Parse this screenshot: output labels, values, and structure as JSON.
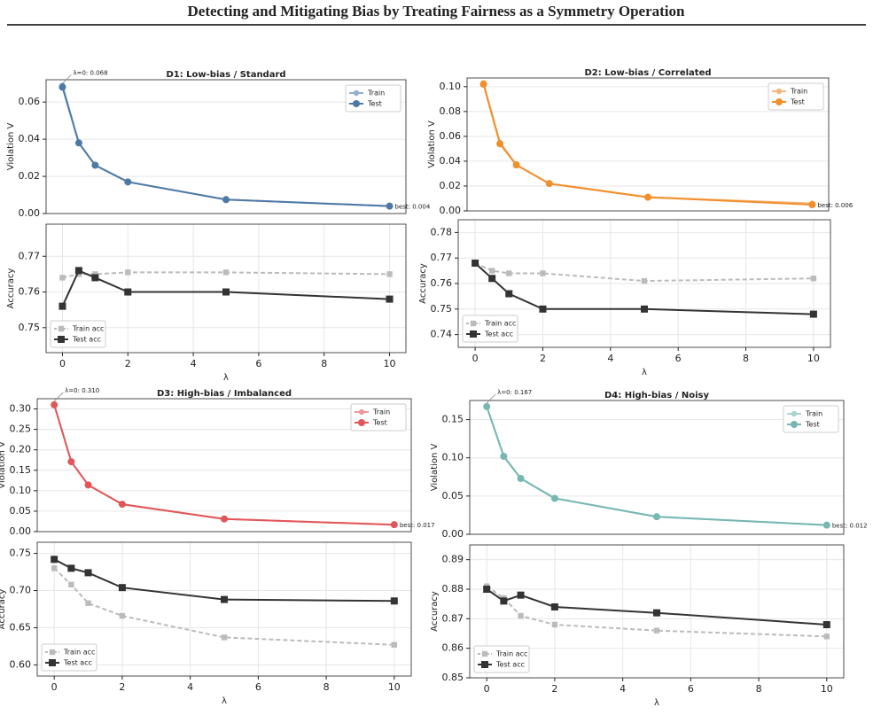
{
  "header": {
    "title": "Detecting and Mitigating Bias by Treating Fairness as a Symmetry Operation"
  },
  "chart_data": [
    {
      "type": "line",
      "title": "D1: Low-bias / Standard",
      "ylabel": "Violation V",
      "x": [
        0,
        0.5,
        1,
        2,
        5,
        10
      ],
      "xlim": [
        -0.5,
        10.5
      ],
      "ylim": [
        0,
        0.072
      ],
      "yticks": [
        {
          "value": 0,
          "label": "0.00"
        },
        0.02,
        0.04,
        0.06
      ],
      "grid": true,
      "legend": "upper right",
      "annotations": [
        "λ=0: 0.068",
        "best: 0.004"
      ],
      "series": [
        {
          "name": "Train",
          "color": "#93b1cf",
          "marker": "circle",
          "linestyle": "solid",
          "values": [
            0.069,
            0.038,
            0.026,
            0.017,
            0.0075,
            0.004
          ]
        },
        {
          "name": "Test",
          "color": "#4e79a7",
          "marker": "circle",
          "linestyle": "solid",
          "values": [
            0.068,
            0.038,
            0.026,
            0.017,
            0.0075,
            0.004
          ]
        }
      ]
    },
    {
      "type": "line",
      "xlabel": "λ",
      "ylabel": "Accuracy",
      "x": [
        0,
        0.5,
        1,
        2,
        5,
        10
      ],
      "xlim": [
        -0.5,
        10.5
      ],
      "xticks": [
        0,
        2,
        4,
        6,
        8,
        10
      ],
      "ylim": [
        0.743,
        0.779
      ],
      "yticks": [
        0.75,
        0.76,
        0.77
      ],
      "grid": true,
      "legend": "lower left",
      "series": [
        {
          "name": "Train acc",
          "color": "#bbbbbb",
          "marker": "square",
          "linestyle": "dashed",
          "values": [
            0.764,
            0.765,
            0.765,
            0.7655,
            0.7655,
            0.765
          ]
        },
        {
          "name": "Test acc",
          "color": "#333333",
          "marker": "square",
          "linestyle": "solid",
          "values": [
            0.756,
            0.766,
            0.764,
            0.76,
            0.76,
            0.758
          ]
        }
      ]
    },
    {
      "type": "line",
      "title": "D2: Low-bias / Correlated",
      "ylabel": "Violation V",
      "x": [
        0,
        0.5,
        1,
        2,
        5,
        10
      ],
      "xlim": [
        -0.5,
        10.5
      ],
      "ylim": [
        0,
        0.107
      ],
      "yticks": [
        {
          "value": 0,
          "label": "0.00"
        },
        0.02,
        0.04,
        0.06,
        0.08,
        {
          "value": 0.1,
          "label": "0.10"
        }
      ],
      "grid": true,
      "legend": "upper right",
      "annotations": [
        "best: 0.006"
      ],
      "series": [
        {
          "name": "Train",
          "color": "#f6b77a",
          "marker": "circle",
          "linestyle": "solid",
          "values": [
            0.103,
            0.055,
            0.037,
            0.022,
            0.011,
            0.006
          ]
        },
        {
          "name": "Test",
          "color": "#f28e2b",
          "marker": "circle",
          "linestyle": "solid",
          "values": [
            0.102,
            0.054,
            0.037,
            0.022,
            0.011,
            0.005
          ]
        }
      ]
    },
    {
      "type": "line",
      "xlabel": "λ",
      "ylabel": "Accuracy",
      "x": [
        0,
        0.5,
        1,
        2,
        5,
        10
      ],
      "xlim": [
        -0.5,
        10.5
      ],
      "xticks": [
        0,
        2,
        4,
        6,
        8,
        10
      ],
      "ylim": [
        0.735,
        0.785
      ],
      "yticks": [
        0.74,
        0.75,
        0.76,
        0.77,
        0.78
      ],
      "grid": true,
      "legend": "lower left",
      "series": [
        {
          "name": "Train acc",
          "color": "#bbbbbb",
          "marker": "square",
          "linestyle": "dashed",
          "values": [
            0.768,
            0.765,
            0.764,
            0.764,
            0.761,
            0.762
          ]
        },
        {
          "name": "Test acc",
          "color": "#333333",
          "marker": "square",
          "linestyle": "solid",
          "values": [
            0.768,
            0.762,
            0.756,
            0.75,
            0.75,
            0.748
          ]
        }
      ]
    },
    {
      "type": "line",
      "title": "D3: High-bias / Imbalanced",
      "ylabel": "Violation V",
      "x": [
        0,
        0.5,
        1,
        2,
        5,
        10
      ],
      "xlim": [
        -0.5,
        10.5
      ],
      "ylim": [
        0,
        0.325
      ],
      "yticks": [
        {
          "value": 0,
          "label": "0.00"
        },
        0.05,
        {
          "value": 0.1,
          "label": "0.10"
        },
        0.15,
        {
          "value": 0.2,
          "label": "0.20"
        },
        0.25,
        {
          "value": 0.3,
          "label": "0.30"
        }
      ],
      "grid": true,
      "legend": "upper right",
      "annotations": [
        "λ=0: 0.310",
        "best: 0.017"
      ],
      "series": [
        {
          "name": "Train",
          "color": "#ec9a9b",
          "marker": "circle",
          "linestyle": "solid",
          "values": [
            0.31,
            0.171,
            0.114,
            0.067,
            0.031,
            0.017
          ]
        },
        {
          "name": "Test",
          "color": "#e15759",
          "marker": "circle",
          "linestyle": "solid",
          "values": [
            0.31,
            0.171,
            0.114,
            0.067,
            0.031,
            0.017
          ]
        }
      ]
    },
    {
      "type": "line",
      "xlabel": "λ",
      "ylabel": "Accuracy",
      "x": [
        0,
        0.5,
        1,
        2,
        5,
        10
      ],
      "xlim": [
        -0.5,
        10.5
      ],
      "xticks": [
        0,
        2,
        4,
        6,
        8,
        10
      ],
      "ylim": [
        0.585,
        0.765
      ],
      "yticks": [
        {
          "value": 0.6,
          "label": "0.60"
        },
        0.65,
        {
          "value": 0.7,
          "label": "0.70"
        },
        0.75
      ],
      "grid": true,
      "legend": "lower left",
      "series": [
        {
          "name": "Train acc",
          "color": "#bbbbbb",
          "marker": "square",
          "linestyle": "dashed",
          "values": [
            0.73,
            0.708,
            0.683,
            0.666,
            0.637,
            0.627
          ]
        },
        {
          "name": "Test acc",
          "color": "#333333",
          "marker": "square",
          "linestyle": "solid",
          "values": [
            0.742,
            0.73,
            0.724,
            0.704,
            0.688,
            0.686
          ]
        }
      ]
    },
    {
      "type": "line",
      "title": "D4: High-bias / Noisy",
      "ylabel": "Violation V",
      "x": [
        0,
        0.5,
        1,
        2,
        5,
        10
      ],
      "xlim": [
        -0.5,
        10.5
      ],
      "ylim": [
        0,
        0.175
      ],
      "yticks": [
        {
          "value": 0,
          "label": "0.00"
        },
        0.05,
        {
          "value": 0.1,
          "label": "0.10"
        },
        0.15
      ],
      "grid": true,
      "legend": "upper right",
      "annotations": [
        "λ=0: 0.167",
        "best: 0.012"
      ],
      "series": [
        {
          "name": "Train",
          "color": "#a8d2cf",
          "marker": "circle",
          "linestyle": "solid",
          "values": [
            0.167,
            0.102,
            0.073,
            0.047,
            0.023,
            0.012
          ]
        },
        {
          "name": "Test",
          "color": "#76b7b2",
          "marker": "circle",
          "linestyle": "solid",
          "values": [
            0.167,
            0.102,
            0.073,
            0.047,
            0.023,
            0.012
          ]
        }
      ]
    },
    {
      "type": "line",
      "xlabel": "λ",
      "ylabel": "Accuracy",
      "x": [
        0,
        0.5,
        1,
        2,
        5,
        10
      ],
      "xlim": [
        -0.5,
        10.5
      ],
      "xticks": [
        0,
        2,
        4,
        6,
        8,
        10
      ],
      "ylim": [
        0.85,
        0.895
      ],
      "yticks": [
        0.85,
        0.86,
        0.87,
        0.88,
        0.89
      ],
      "grid": true,
      "legend": "lower left",
      "series": [
        {
          "name": "Train acc",
          "color": "#bbbbbb",
          "marker": "square",
          "linestyle": "dashed",
          "values": [
            0.881,
            0.877,
            0.871,
            0.868,
            0.866,
            0.864
          ]
        },
        {
          "name": "Test acc",
          "color": "#333333",
          "marker": "square",
          "linestyle": "solid",
          "values": [
            0.88,
            0.876,
            0.878,
            0.874,
            0.872,
            0.868
          ]
        }
      ]
    }
  ]
}
